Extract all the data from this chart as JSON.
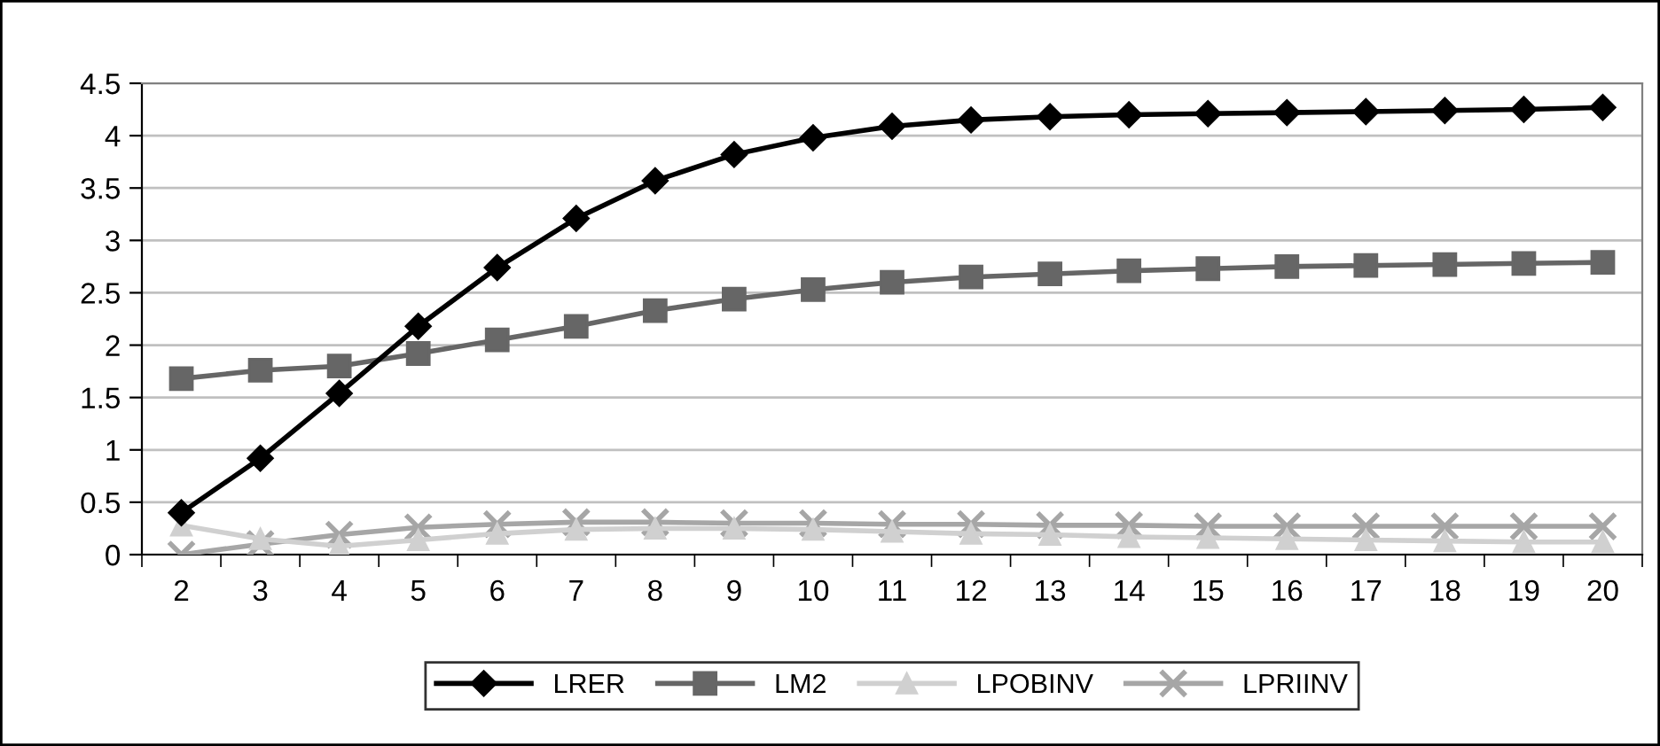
{
  "chart_data": {
    "type": "line",
    "categories": [
      "2",
      "3",
      "4",
      "5",
      "6",
      "7",
      "8",
      "9",
      "10",
      "11",
      "12",
      "13",
      "14",
      "15",
      "16",
      "17",
      "18",
      "19",
      "20"
    ],
    "series": [
      {
        "name": "LRER",
        "color": "#000000",
        "marker": "diamond",
        "values": [
          0.4,
          0.92,
          1.54,
          2.18,
          2.74,
          3.21,
          3.57,
          3.82,
          3.98,
          4.09,
          4.15,
          4.18,
          4.2,
          4.21,
          4.22,
          4.23,
          4.24,
          4.25,
          4.27
        ]
      },
      {
        "name": "LM2",
        "color": "#666666",
        "marker": "square",
        "values": [
          1.68,
          1.76,
          1.8,
          1.92,
          2.05,
          2.18,
          2.33,
          2.44,
          2.53,
          2.6,
          2.65,
          2.68,
          2.71,
          2.73,
          2.75,
          2.76,
          2.77,
          2.78,
          2.79
        ]
      },
      {
        "name": "LPOBINV",
        "color": "#d0d0d0",
        "marker": "triangle",
        "values": [
          0.28,
          0.15,
          0.08,
          0.14,
          0.2,
          0.24,
          0.25,
          0.25,
          0.24,
          0.22,
          0.2,
          0.19,
          0.17,
          0.16,
          0.15,
          0.14,
          0.13,
          0.12,
          0.12
        ]
      },
      {
        "name": "LPRIINV",
        "color": "#a6a6a6",
        "marker": "cross",
        "values": [
          0,
          0.1,
          0.19,
          0.26,
          0.29,
          0.31,
          0.31,
          0.3,
          0.3,
          0.29,
          0.29,
          0.28,
          0.28,
          0.27,
          0.27,
          0.27,
          0.27,
          0.27,
          0.27
        ]
      }
    ],
    "ylim": [
      0,
      4.5
    ],
    "yticks": [
      0,
      0.5,
      1,
      1.5,
      2,
      2.5,
      3,
      3.5,
      4,
      4.5
    ],
    "grid": "y",
    "legend": "bottom",
    "line_style": "solid"
  }
}
